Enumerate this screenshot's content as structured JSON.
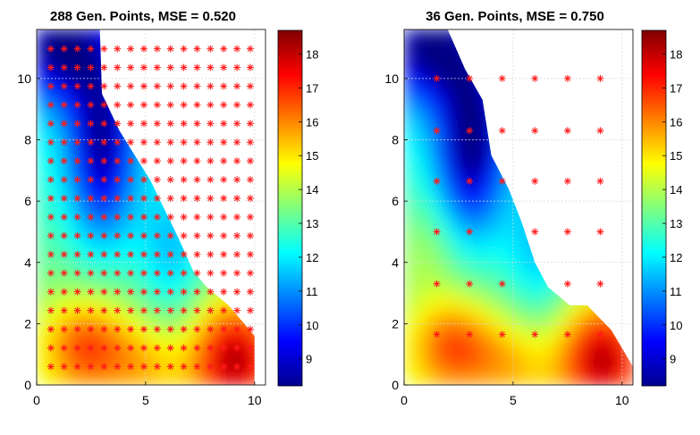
{
  "chart_data": [
    {
      "type": "contour",
      "title": "288 Gen. Points, MSE = 0.520",
      "xlim": [
        0,
        10.5
      ],
      "ylim": [
        0,
        11.6
      ],
      "xticks": [
        "0",
        "5",
        "10"
      ],
      "yticks": [
        "0",
        "2",
        "4",
        "6",
        "8",
        "10"
      ],
      "colorbar": {
        "min": 8.2,
        "max": 18.7,
        "ticks": [
          "9",
          "10",
          "11",
          "12",
          "13",
          "14",
          "15",
          "16",
          "17",
          "18"
        ]
      },
      "grid": true,
      "points": {
        "x_start": 0.65,
        "x_step": 0.61,
        "y_start": 0.6,
        "y_step": 0.61,
        "boundary": [
          [
            0,
            11.6
          ],
          [
            2.9,
            11.6
          ],
          [
            3.0,
            9.5
          ],
          [
            3.8,
            8.3
          ],
          [
            4.5,
            7.5
          ],
          [
            5.2,
            6.7
          ],
          [
            6.5,
            4.8
          ],
          [
            7.2,
            3.7
          ],
          [
            7.8,
            3.2
          ],
          [
            8.8,
            2.6
          ],
          [
            10.0,
            1.6
          ],
          [
            10.0,
            0
          ]
        ]
      }
    },
    {
      "type": "contour",
      "title": "36 Gen. Points, MSE = 0.750",
      "xlim": [
        0,
        10.5
      ],
      "ylim": [
        0,
        11.6
      ],
      "xticks": [
        "0",
        "5",
        "10"
      ],
      "yticks": [
        "0",
        "2",
        "4",
        "6",
        "8",
        "10"
      ],
      "colorbar": {
        "min": 8.2,
        "max": 18.7,
        "ticks": [
          "9",
          "10",
          "11",
          "12",
          "13",
          "14",
          "15",
          "16",
          "17",
          "18"
        ]
      },
      "grid": true,
      "points": {
        "x": [
          1.5,
          3.0,
          4.5,
          6.0,
          7.5,
          9.0
        ],
        "y": [
          1.65,
          3.3,
          5.0,
          6.65,
          8.3,
          10.0
        ],
        "shown": [
          [
            1,
            1,
            1,
            1,
            1,
            1
          ],
          [
            1,
            1,
            1,
            0,
            1,
            1
          ],
          [
            1,
            1,
            0,
            1,
            1,
            1
          ],
          [
            1,
            1,
            1,
            1,
            1,
            1
          ],
          [
            1,
            1,
            1,
            1,
            1,
            1
          ],
          [
            1,
            1,
            1,
            1,
            1,
            1
          ]
        ]
      }
    }
  ]
}
